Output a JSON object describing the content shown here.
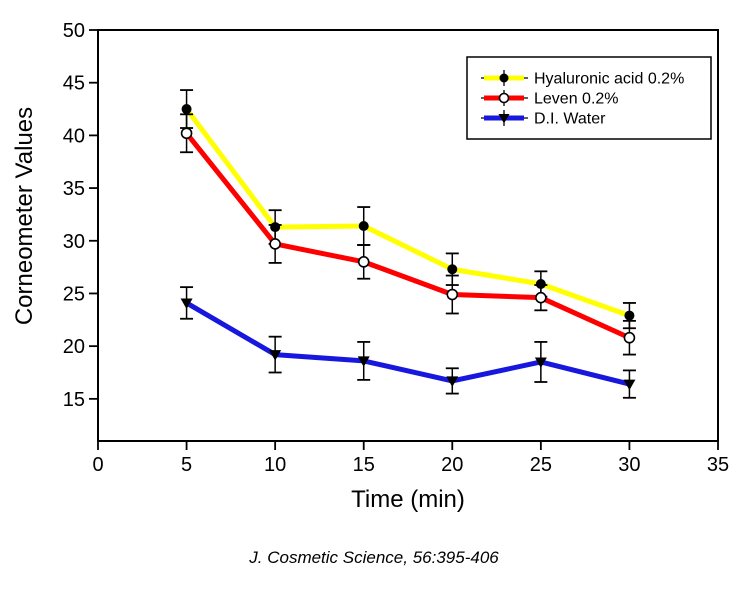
{
  "figure": {
    "caption": "J. Cosmetic Science, 56:395-406"
  },
  "chart_data": {
    "type": "line",
    "title": "",
    "xlabel": "Time (min)",
    "ylabel": "Corneometer Values",
    "x": [
      5,
      10,
      15,
      20,
      25,
      30
    ],
    "series": [
      {
        "name": "Hyaluronic acid 0.2%",
        "color": "#ffff00",
        "marker": "filled-circle",
        "values": [
          42.5,
          31.3,
          31.4,
          27.3,
          25.9,
          22.9
        ],
        "errors": [
          1.8,
          1.6,
          1.8,
          1.5,
          1.2,
          1.2
        ]
      },
      {
        "name": "Leven 0.2%",
        "color": "#fe0000",
        "marker": "open-circle",
        "values": [
          40.2,
          29.7,
          28.0,
          24.9,
          24.6,
          20.8
        ],
        "errors": [
          1.8,
          1.8,
          1.6,
          1.8,
          1.2,
          1.6
        ]
      },
      {
        "name": "D.I. Water",
        "color": "#1717dd",
        "marker": "filled-triangle-down",
        "values": [
          24.1,
          19.2,
          18.6,
          16.7,
          18.5,
          16.4
        ],
        "errors": [
          1.5,
          1.7,
          1.8,
          1.2,
          1.9,
          1.3
        ]
      }
    ],
    "xlim": [
      0,
      35
    ],
    "ylim": [
      11,
      50
    ],
    "xticks": [
      0,
      5,
      10,
      15,
      20,
      25,
      30,
      35
    ],
    "yticks": [
      15,
      20,
      25,
      30,
      35,
      40,
      45,
      50
    ],
    "grid": false,
    "error_bars": true,
    "legend_position": "top-right",
    "axis_color": "#000000",
    "marker_color": "#000000"
  }
}
